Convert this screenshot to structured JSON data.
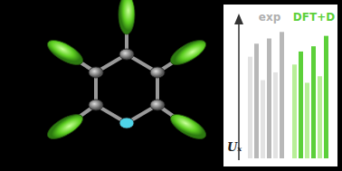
{
  "chart_data": {
    "type": "bar",
    "y_label": "Uₓ",
    "tick_labels": false,
    "categories": [
      null,
      null,
      null,
      null,
      null,
      null
    ],
    "ylim": [
      0,
      100
    ],
    "series": [
      {
        "name": "exp",
        "color": "#b0b0b0",
        "colors": [
          "#e2e2e2",
          "#b8b8b8",
          "#e2e2e2",
          "#b8b8b8",
          "#e2e2e2",
          "#b8b8b8"
        ],
        "values": [
          78,
          88,
          60,
          92,
          66,
          97
        ]
      },
      {
        "name": "DFT+D",
        "color": "#5cd03a",
        "colors": [
          "#b8ef98",
          "#5cd03a",
          "#b8ef98",
          "#5cd03a",
          "#b8ef98",
          "#5cd03a"
        ],
        "values": [
          72,
          82,
          58,
          86,
          63,
          94
        ]
      }
    ]
  }
}
